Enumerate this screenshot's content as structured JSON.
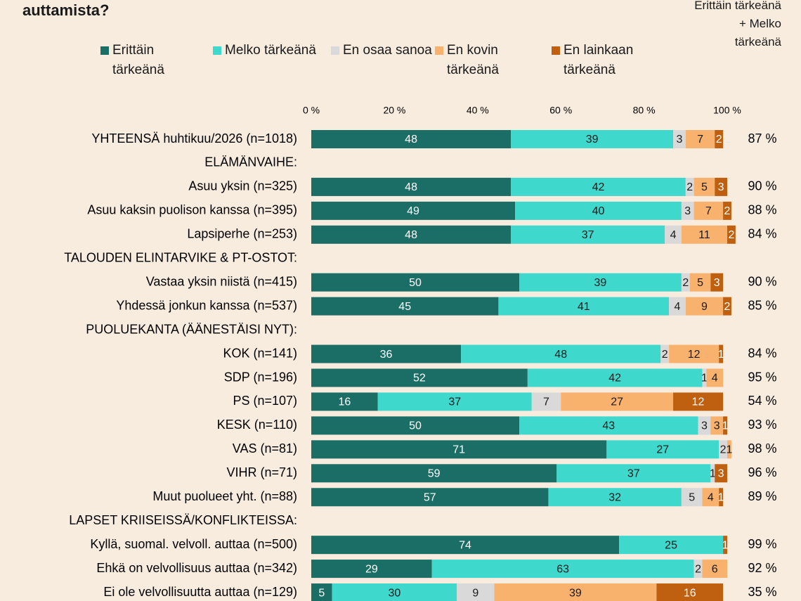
{
  "chart_data": {
    "type": "stacked-bar-horizontal",
    "title": "auttamista?",
    "categories": [
      "YHTEENSÄ huhtikuu/2026 (n=1018)",
      "ELÄMÄNVAIHE:",
      "Asuu yksin (n=325)",
      "Asuu kaksin puolison kanssa (n=395)",
      "Lapsiperhe (n=253)",
      "TALOUDEN ELINTARVIKE & PT-OSTOT:",
      "Vastaa yksin niistä (n=415)",
      "Yhdessä jonkun kanssa (n=537)",
      "PUOLUEKANTA (ÄÄNESTÄISI NYT):",
      "KOK (n=141)",
      "SDP (n=196)",
      "PS (n=107)",
      "KESK (n=110)",
      "VAS (n=81)",
      "VIHR (n=71)",
      "Muut puolueet yht. (n=88)",
      "LAPSET KRIISEISSÄ/KONFLIKTEISSA:",
      "Kyllä, suomal. velvoll. auttaa (n=500)",
      "Ehkä on velvollisuus auttaa (n=342)",
      "Ei ole velvollisuutta auttaa (n=129)"
    ],
    "series": [
      {
        "name": "Erittäin tärkeänä",
        "color": "#1b6e66",
        "label_color": "#ffffff",
        "values": [
          48,
          null,
          48,
          49,
          48,
          null,
          50,
          45,
          null,
          36,
          52,
          16,
          50,
          71,
          59,
          57,
          null,
          74,
          29,
          5
        ]
      },
      {
        "name": "Melko tärkeänä",
        "color": "#3ed8cc",
        "label_color": "#1a1a1a",
        "values": [
          39,
          null,
          42,
          40,
          37,
          null,
          39,
          41,
          null,
          48,
          42,
          37,
          43,
          27,
          37,
          32,
          null,
          25,
          63,
          30
        ]
      },
      {
        "name": "En osaa sanoa",
        "color": "#d9d9d9",
        "label_color": "#1a1a1a",
        "values": [
          3,
          null,
          2,
          3,
          4,
          null,
          2,
          4,
          null,
          2,
          1,
          7,
          3,
          2,
          1,
          5,
          null,
          null,
          2,
          9
        ]
      },
      {
        "name": "En kovin tärkeänä",
        "color": "#f9b26d",
        "label_color": "#1a1a1a",
        "values": [
          7,
          null,
          5,
          7,
          11,
          null,
          5,
          9,
          null,
          12,
          4,
          27,
          3,
          1,
          null,
          4,
          null,
          null,
          6,
          39
        ]
      },
      {
        "name": "En lainkaan tärkeänä",
        "color": "#bf5f10",
        "label_color": "#ffffff",
        "values": [
          2,
          null,
          3,
          2,
          2,
          null,
          3,
          2,
          null,
          1,
          null,
          12,
          1,
          null,
          3,
          1,
          null,
          1,
          null,
          16
        ]
      }
    ],
    "totals": {
      "name": "Erittäin tärkeänä + Melko tärkeänä",
      "values": [
        87,
        null,
        90,
        88,
        84,
        null,
        90,
        85,
        null,
        84,
        95,
        54,
        93,
        98,
        96,
        89,
        null,
        99,
        92,
        35
      ],
      "value_labels": [
        "87 %",
        null,
        "90 %",
        "88 %",
        "84 %",
        null,
        "90 %",
        "85 %",
        null,
        "84 %",
        "95 %",
        "54 %",
        "93 %",
        "98 %",
        "96 %",
        "89 %",
        null,
        "99 %",
        "92 %",
        "35 %"
      ]
    },
    "xlim": [
      0,
      100
    ],
    "xticks": [
      {
        "value": 0,
        "label": "0 %"
      },
      {
        "value": 20,
        "label": "20 %"
      },
      {
        "value": 40,
        "label": "40 %"
      },
      {
        "value": 60,
        "label": "60 %"
      },
      {
        "value": 80,
        "label": "80 %"
      },
      {
        "value": 100,
        "label": "100 %"
      }
    ]
  }
}
